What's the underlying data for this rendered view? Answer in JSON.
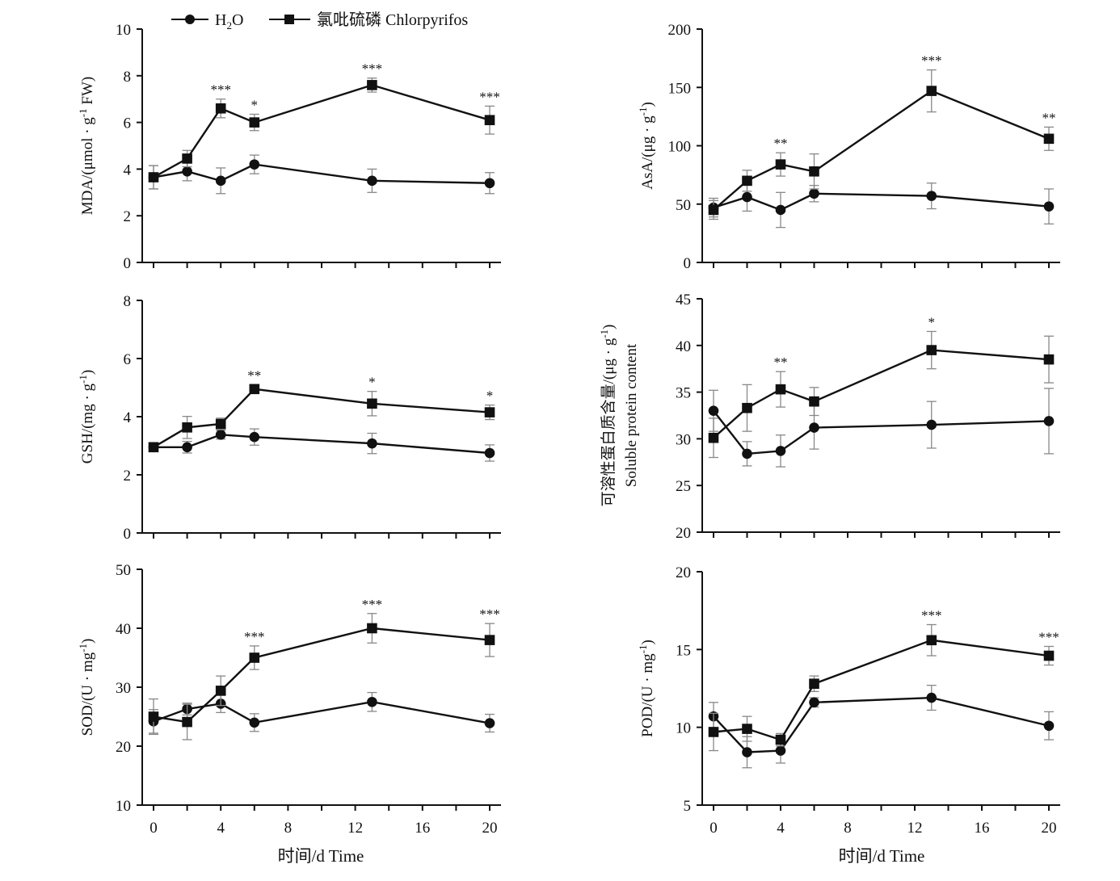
{
  "legend": {
    "h2o_main": "H",
    "h2o_sub": "2",
    "h2o_end": "O",
    "chlorpyrifos": "氯吡硫磷 Chlorpyrifos"
  },
  "x_label": "时间/d Time",
  "x_ticks": [
    0,
    4,
    8,
    12,
    16,
    20
  ],
  "chart_data": [
    {
      "id": "mda",
      "type": "line",
      "ylabel": [
        {
          "t": "MDA/(μmol · g"
        },
        {
          "t": "-1",
          "sup": true
        },
        {
          "t": " FW)"
        }
      ],
      "ylim": [
        0,
        10
      ],
      "yticks": [
        0,
        2,
        4,
        6,
        8,
        10
      ],
      "xlim": [
        0,
        20
      ],
      "series": [
        {
          "name": "H2O",
          "marker": "circle",
          "x": [
            0,
            2,
            4,
            6,
            13,
            20
          ],
          "y": [
            3.65,
            3.9,
            3.5,
            4.2,
            3.5,
            3.4
          ],
          "err": [
            0.5,
            0.4,
            0.55,
            0.4,
            0.5,
            0.45
          ]
        },
        {
          "name": "Chlorpyrifos",
          "marker": "square",
          "x": [
            0,
            2,
            4,
            6,
            13,
            20
          ],
          "y": [
            3.65,
            4.45,
            6.6,
            6.0,
            7.6,
            6.1
          ],
          "err": [
            0.5,
            0.35,
            0.4,
            0.35,
            0.3,
            0.6
          ]
        }
      ],
      "significance": [
        {
          "x": 4,
          "label": "***"
        },
        {
          "x": 6,
          "label": "*"
        },
        {
          "x": 13,
          "label": "***"
        },
        {
          "x": 20,
          "label": "***"
        }
      ]
    },
    {
      "id": "asa",
      "type": "line",
      "ylabel": [
        {
          "t": "AsA/(μg · g"
        },
        {
          "t": "-1",
          "sup": true
        },
        {
          "t": ")"
        }
      ],
      "ylim": [
        0,
        200
      ],
      "yticks": [
        0,
        50,
        100,
        150,
        200
      ],
      "xlim": [
        0,
        20
      ],
      "series": [
        {
          "name": "H2O",
          "marker": "circle",
          "x": [
            0,
            2,
            4,
            6,
            13,
            20
          ],
          "y": [
            47,
            56,
            45,
            59,
            57,
            48
          ],
          "err": [
            8,
            12,
            15,
            7,
            11,
            15
          ]
        },
        {
          "name": "Chlorpyrifos",
          "marker": "square",
          "x": [
            0,
            2,
            4,
            6,
            13,
            20
          ],
          "y": [
            45,
            70,
            84,
            78,
            147,
            106
          ],
          "err": [
            8,
            9,
            10,
            15,
            18,
            10
          ]
        }
      ],
      "significance": [
        {
          "x": 4,
          "label": "**"
        },
        {
          "x": 13,
          "label": "***"
        },
        {
          "x": 20,
          "label": "**"
        }
      ]
    },
    {
      "id": "gsh",
      "type": "line",
      "ylabel": [
        {
          "t": "GSH/(mg · g"
        },
        {
          "t": "-1",
          "sup": true
        },
        {
          "t": ")"
        }
      ],
      "ylim": [
        0,
        8
      ],
      "yticks": [
        0,
        2,
        4,
        6,
        8
      ],
      "xlim": [
        0,
        20
      ],
      "series": [
        {
          "name": "H2O",
          "marker": "circle",
          "x": [
            0,
            2,
            4,
            6,
            13,
            20
          ],
          "y": [
            2.95,
            2.95,
            3.38,
            3.3,
            3.08,
            2.75
          ],
          "err": [
            0.1,
            0.2,
            0.15,
            0.28,
            0.35,
            0.28
          ]
        },
        {
          "name": "Chlorpyrifos",
          "marker": "square",
          "x": [
            0,
            2,
            4,
            6,
            13,
            20
          ],
          "y": [
            2.95,
            3.63,
            3.75,
            4.95,
            4.45,
            4.15
          ],
          "err": [
            0.1,
            0.38,
            0.2,
            0.15,
            0.42,
            0.25
          ]
        }
      ],
      "significance": [
        {
          "x": 6,
          "label": "**"
        },
        {
          "x": 13,
          "label": "*"
        },
        {
          "x": 20,
          "label": "*"
        }
      ]
    },
    {
      "id": "protein",
      "type": "line",
      "ylabel": [
        {
          "t": "可溶性蛋白质含量/(μg · g"
        },
        {
          "t": "-1",
          "sup": true
        },
        {
          "t": ")"
        }
      ],
      "ylabel2": "Soluble protein content",
      "ylim": [
        20,
        45
      ],
      "yticks": [
        20,
        25,
        30,
        35,
        40,
        45
      ],
      "xlim": [
        0,
        20
      ],
      "series": [
        {
          "name": "H2O",
          "marker": "circle",
          "x": [
            0,
            2,
            4,
            6,
            13,
            20
          ],
          "y": [
            33.0,
            28.4,
            28.7,
            31.2,
            31.5,
            31.9
          ],
          "err": [
            2.2,
            1.3,
            1.7,
            2.3,
            2.5,
            3.5
          ]
        },
        {
          "name": "Chlorpyrifos",
          "marker": "square",
          "x": [
            0,
            2,
            4,
            6,
            13,
            20
          ],
          "y": [
            30.1,
            33.3,
            35.3,
            34.0,
            39.5,
            38.5
          ],
          "err": [
            2.1,
            2.5,
            1.9,
            1.5,
            2.0,
            2.5
          ]
        }
      ],
      "significance": [
        {
          "x": 4,
          "label": "**"
        },
        {
          "x": 13,
          "label": "*"
        }
      ]
    },
    {
      "id": "sod",
      "type": "line",
      "ylabel": [
        {
          "t": "SOD/(U · mg"
        },
        {
          "t": "-1",
          "sup": true
        },
        {
          "t": ")"
        }
      ],
      "ylim": [
        10,
        50
      ],
      "yticks": [
        10,
        20,
        30,
        40,
        50
      ],
      "xlim": [
        0,
        20
      ],
      "series": [
        {
          "name": "H2O",
          "marker": "circle",
          "x": [
            0,
            2,
            4,
            6,
            13,
            20
          ],
          "y": [
            24.2,
            26.3,
            27.2,
            24.0,
            27.5,
            23.9
          ],
          "err": [
            2.0,
            1.0,
            1.5,
            1.5,
            1.6,
            1.5
          ]
        },
        {
          "name": "Chlorpyrifos",
          "marker": "square",
          "x": [
            0,
            2,
            4,
            6,
            13,
            20
          ],
          "y": [
            25.0,
            24.1,
            29.4,
            35.0,
            40.0,
            38.0
          ],
          "err": [
            3.0,
            3.0,
            2.5,
            2.0,
            2.5,
            2.8
          ]
        }
      ],
      "significance": [
        {
          "x": 6,
          "label": "***"
        },
        {
          "x": 13,
          "label": "***"
        },
        {
          "x": 20,
          "label": "***"
        }
      ]
    },
    {
      "id": "pod",
      "type": "line",
      "ylabel": [
        {
          "t": "POD/(U · mg"
        },
        {
          "t": "-1",
          "sup": true
        },
        {
          "t": ")"
        }
      ],
      "ylim": [
        5,
        20
      ],
      "yticks": [
        5,
        10,
        15,
        20
      ],
      "xlim": [
        0,
        20
      ],
      "series": [
        {
          "name": "H2O",
          "marker": "circle",
          "x": [
            0,
            2,
            4,
            6,
            13,
            20
          ],
          "y": [
            10.7,
            8.4,
            8.5,
            11.6,
            11.9,
            10.1
          ],
          "err": [
            0.9,
            1.0,
            0.8,
            0.3,
            0.8,
            0.9
          ]
        },
        {
          "name": "Chlorpyrifos",
          "marker": "square",
          "x": [
            0,
            2,
            4,
            6,
            13,
            20
          ],
          "y": [
            9.7,
            9.9,
            9.2,
            12.8,
            15.6,
            14.6
          ],
          "err": [
            1.2,
            0.8,
            0.4,
            0.5,
            1.0,
            0.6
          ]
        }
      ],
      "significance": [
        {
          "x": 13,
          "label": "***"
        },
        {
          "x": 20,
          "label": "***"
        }
      ]
    }
  ]
}
